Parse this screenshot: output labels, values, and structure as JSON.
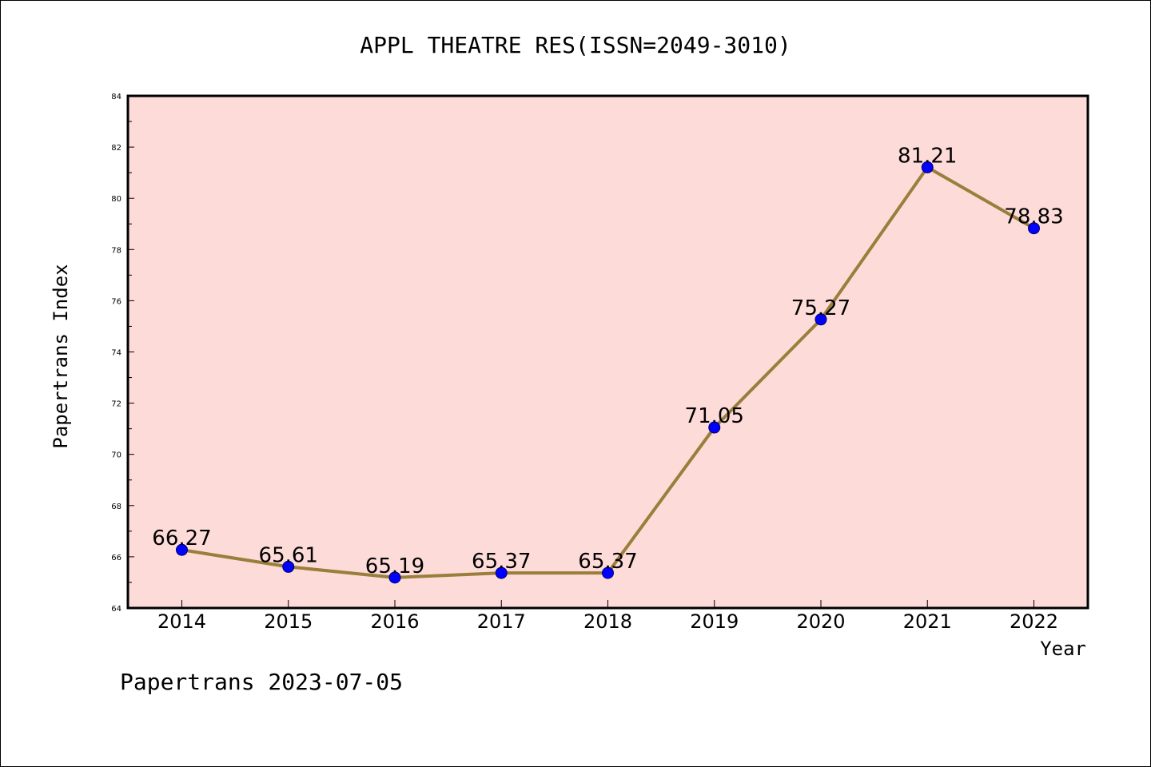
{
  "chart_data": {
    "type": "line",
    "title": "APPL THEATRE RES(ISSN=2049-3010)",
    "xlabel": "Year",
    "ylabel": "Papertrans Index",
    "categories": [
      "2014",
      "2015",
      "2016",
      "2017",
      "2018",
      "2019",
      "2020",
      "2021",
      "2022"
    ],
    "values": [
      66.27,
      65.61,
      65.19,
      65.37,
      65.37,
      71.05,
      75.27,
      81.21,
      78.83
    ],
    "data_labels": [
      "66.27",
      "65.61",
      "65.19",
      "65.37",
      "65.37",
      "71.05",
      "75.27",
      "81.21",
      "78.83"
    ],
    "ylim": [
      64,
      84
    ],
    "yticks": [
      "64",
      "66",
      "68",
      "70",
      "72",
      "74",
      "76",
      "78",
      "80",
      "82",
      "84"
    ],
    "grid": false,
    "legend": "none"
  },
  "footer": {
    "text": "Papertrans 2023-07-05"
  },
  "colors": {
    "plot_background": "#fddbd9",
    "line": "#9a7e3a",
    "marker": "#0000ff",
    "axis": "#000000"
  }
}
